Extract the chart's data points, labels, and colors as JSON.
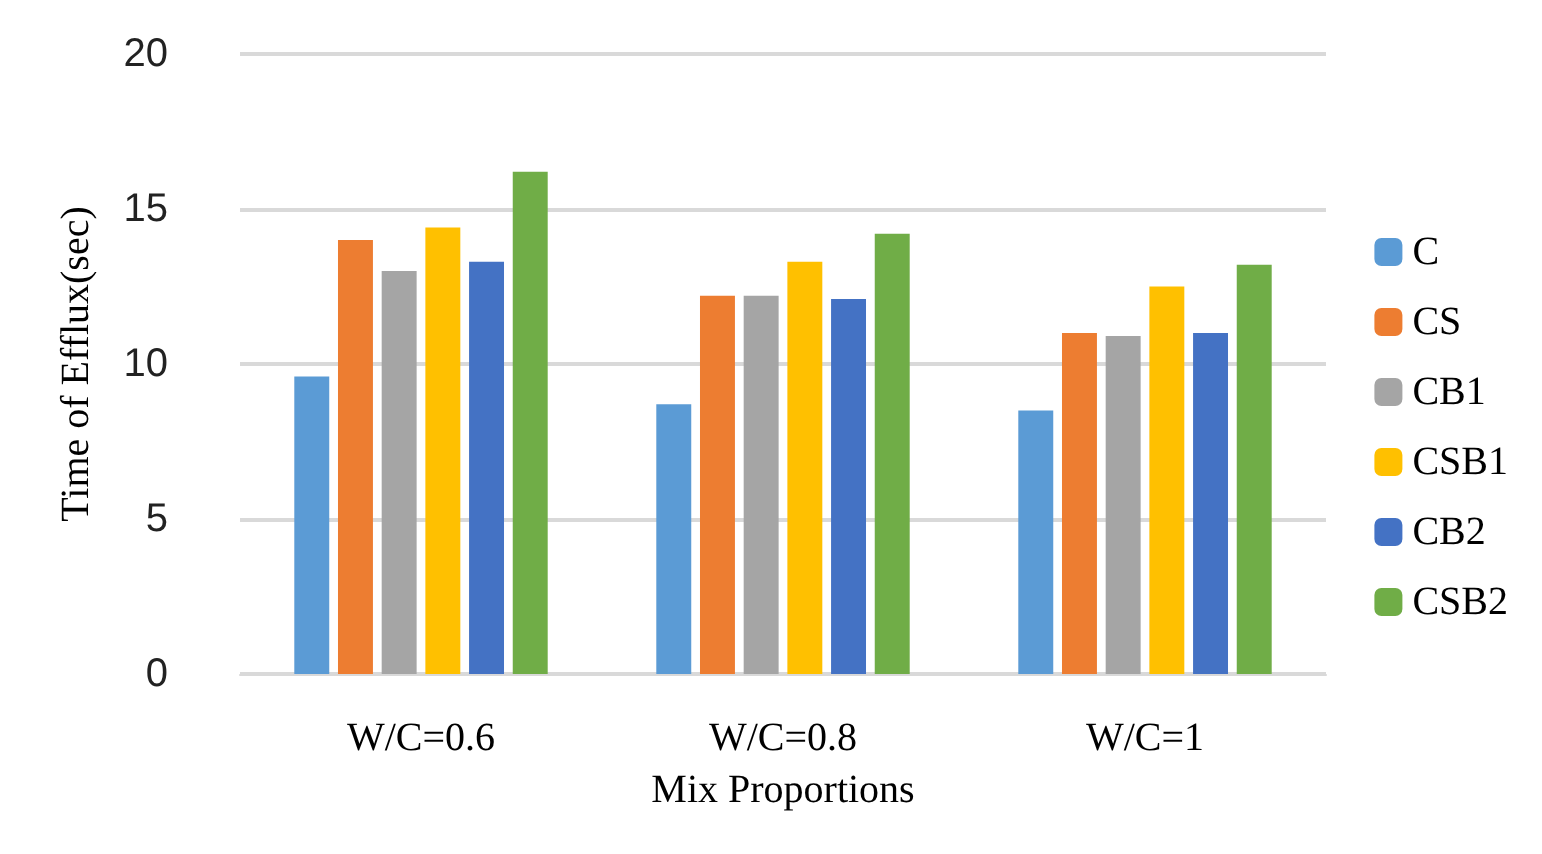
{
  "chart_data": {
    "type": "bar",
    "xlabel": "Mix Proportions",
    "ylabel": "Time of Efflux(sec)",
    "categories": [
      "W/C=0.6",
      "W/C=0.8",
      "W/C=1"
    ],
    "series": [
      {
        "name": "C",
        "color": "#5b9bd5",
        "values": [
          9.6,
          8.7,
          8.5
        ]
      },
      {
        "name": "CS",
        "color": "#ed7d31",
        "values": [
          14.0,
          12.2,
          11.0
        ]
      },
      {
        "name": "CB1",
        "color": "#a5a5a5",
        "values": [
          13.0,
          12.2,
          10.9
        ]
      },
      {
        "name": "CSB1",
        "color": "#ffc000",
        "values": [
          14.4,
          13.3,
          12.5
        ]
      },
      {
        "name": "CB2",
        "color": "#4472c4",
        "values": [
          13.3,
          12.1,
          11.0
        ]
      },
      {
        "name": "CSB2",
        "color": "#70ad47",
        "values": [
          16.2,
          14.2,
          13.2
        ]
      }
    ],
    "ylim": [
      0,
      20
    ],
    "yticks": [
      0,
      5,
      10,
      15,
      20
    ],
    "grid": "y",
    "legend": "right"
  }
}
